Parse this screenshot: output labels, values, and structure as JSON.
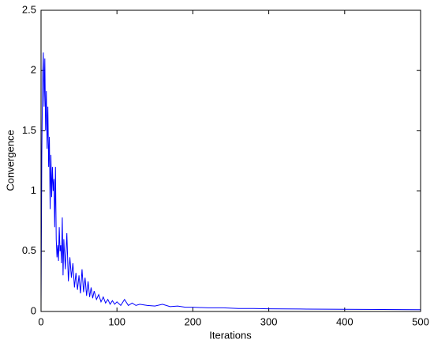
{
  "chart_data": {
    "type": "line",
    "x_label": "Iterations",
    "y_label": "Convergence",
    "xlim": [
      0,
      500
    ],
    "ylim": [
      0,
      2.5
    ],
    "xticks": [
      0,
      100,
      200,
      300,
      400,
      500
    ],
    "yticks": [
      0,
      0.5,
      1,
      1.5,
      2,
      2.5
    ],
    "grid": false,
    "x": [
      0,
      1,
      2,
      3,
      4,
      5,
      6,
      7,
      8,
      9,
      10,
      11,
      12,
      13,
      14,
      15,
      16,
      17,
      18,
      19,
      20,
      21,
      22,
      23,
      24,
      25,
      26,
      27,
      28,
      29,
      30,
      32,
      34,
      36,
      38,
      40,
      42,
      44,
      46,
      48,
      50,
      52,
      54,
      56,
      58,
      60,
      62,
      64,
      66,
      68,
      70,
      73,
      76,
      79,
      82,
      85,
      88,
      91,
      94,
      97,
      100,
      105,
      110,
      115,
      120,
      125,
      130,
      140,
      150,
      160,
      170,
      180,
      190,
      200,
      220,
      240,
      260,
      280,
      300,
      350,
      400,
      450,
      500
    ],
    "series": [
      {
        "color": "#0000ff",
        "values": [
          0.05,
          1.3,
          1.9,
          2.15,
          1.7,
          2.1,
          1.5,
          1.83,
          1.35,
          1.7,
          1.2,
          1.45,
          0.85,
          1.3,
          0.95,
          1.2,
          1.0,
          1.1,
          0.7,
          1.2,
          0.6,
          0.45,
          0.55,
          0.42,
          0.7,
          0.5,
          0.55,
          0.4,
          0.78,
          0.3,
          0.6,
          0.35,
          0.65,
          0.25,
          0.45,
          0.28,
          0.4,
          0.2,
          0.32,
          0.18,
          0.3,
          0.15,
          0.35,
          0.16,
          0.28,
          0.13,
          0.25,
          0.12,
          0.2,
          0.11,
          0.17,
          0.1,
          0.14,
          0.08,
          0.12,
          0.07,
          0.1,
          0.06,
          0.09,
          0.06,
          0.08,
          0.05,
          0.1,
          0.05,
          0.07,
          0.05,
          0.06,
          0.05,
          0.045,
          0.06,
          0.04,
          0.045,
          0.035,
          0.035,
          0.03,
          0.03,
          0.025,
          0.025,
          0.022,
          0.02,
          0.018,
          0.016,
          0.015
        ]
      }
    ]
  }
}
